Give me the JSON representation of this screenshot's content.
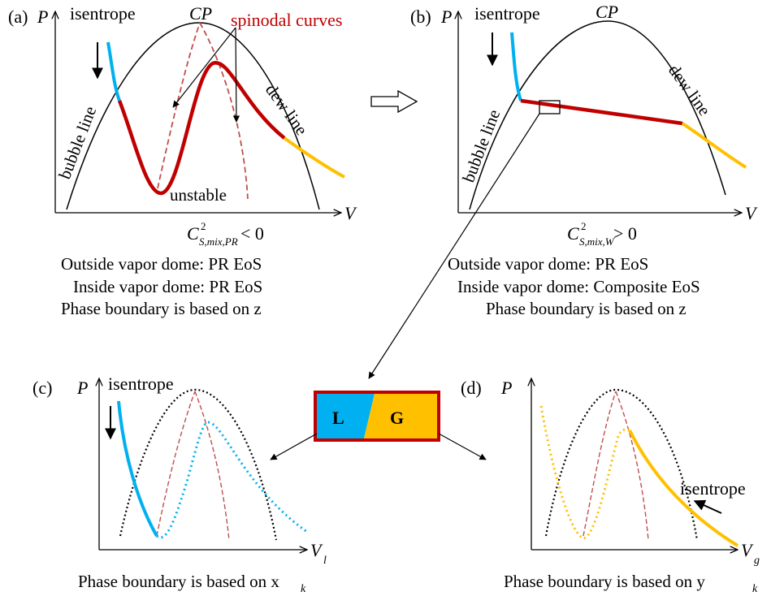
{
  "colors": {
    "black": "#000000",
    "red": "#C00000",
    "dashed_red": "#C0504D",
    "blue": "#00B0F0",
    "orange": "#FFC000",
    "spinodal_text": "#C00000"
  },
  "panel_a": {
    "tag": "(a)",
    "p_axis": "P",
    "v_axis": "V",
    "cp": "CP",
    "isentrope": "isentrope",
    "spinodal": "spinodal curves",
    "dew": "dew line",
    "bubble": "bubble line",
    "unstable": "unstable",
    "sos_main": "C",
    "sos_sup": "2",
    "sos_sub": "S,mix,PR",
    "sos_rel": "< 0",
    "captions": [
      "Outside vapor dome:  PR EoS",
      "Inside vapor dome:  PR EoS",
      "Phase boundary is based on z"
    ]
  },
  "panel_b": {
    "tag": "(b)",
    "p_axis": "P",
    "v_axis": "V",
    "cp": "CP",
    "isentrope": "isentrope",
    "dew": "dew line",
    "bubble": "bubble line",
    "sos_main": "C",
    "sos_sup": "2",
    "sos_sub": "S,mix,W",
    "sos_rel": "> 0",
    "captions": [
      "Outside vapor dome:  PR EoS",
      "Inside vapor dome:  Composite EoS",
      "Phase boundary is based on z"
    ]
  },
  "cell": {
    "liquid": "L",
    "gas": "G"
  },
  "panel_c": {
    "tag": "(c)",
    "p_axis": "P",
    "v_axis": "V",
    "v_sub": "l",
    "isentrope": "isentrope",
    "caption": "Phase boundary is based on x",
    "caption_sub": "k"
  },
  "panel_d": {
    "tag": "(d)",
    "p_axis": "P",
    "v_axis": "V",
    "v_sub": "g",
    "isentrope": "isentrope",
    "caption": "Phase boundary is based on y",
    "caption_sub": "k"
  }
}
